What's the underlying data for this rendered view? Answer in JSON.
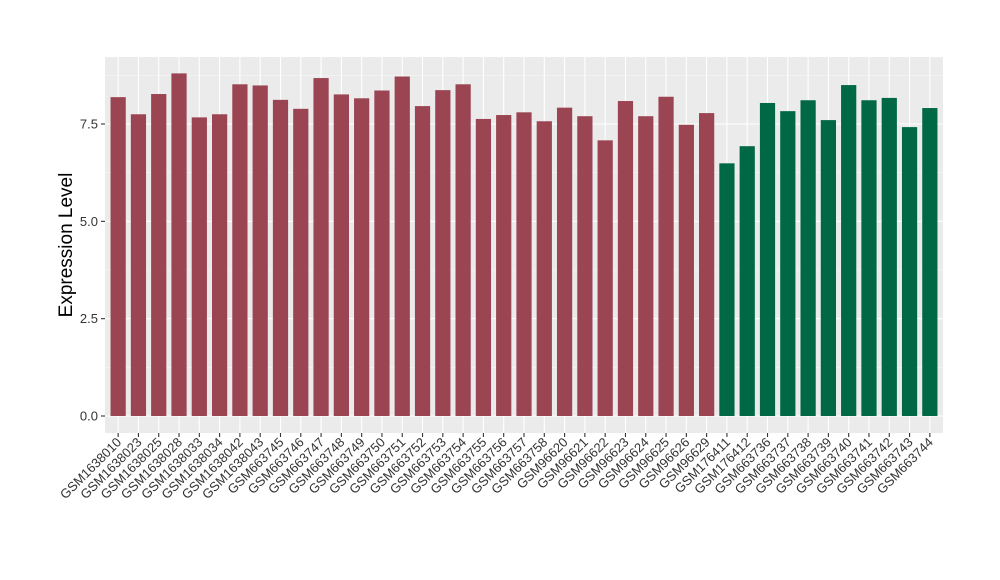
{
  "chart_data": {
    "type": "bar",
    "title": "",
    "xlabel": "",
    "ylabel": "Expression Level",
    "ylim": [
      0,
      9.2
    ],
    "yticks": [
      "0.0",
      "2.5",
      "5.0",
      "7.5"
    ],
    "ytick_values": [
      0,
      2.5,
      5.0,
      7.5
    ],
    "grid": true,
    "panel_background": "#ebebeb",
    "colors": {
      "group1": "#9b4452",
      "group2": "#006845"
    },
    "categories": [
      "GSM1638010",
      "GSM1638023",
      "GSM1638025",
      "GSM1638028",
      "GSM1638033",
      "GSM1638034",
      "GSM1638042",
      "GSM1638043",
      "GSM663745",
      "GSM663746",
      "GSM663747",
      "GSM663748",
      "GSM663749",
      "GSM663750",
      "GSM663751",
      "GSM663752",
      "GSM663753",
      "GSM663754",
      "GSM663755",
      "GSM663756",
      "GSM663757",
      "GSM663758",
      "GSM96620",
      "GSM96621",
      "GSM96622",
      "GSM96623",
      "GSM96624",
      "GSM96625",
      "GSM96626",
      "GSM96629",
      "GSM176411",
      "GSM176412",
      "GSM663736",
      "GSM663737",
      "GSM663738",
      "GSM663739",
      "GSM663740",
      "GSM663741",
      "GSM663742",
      "GSM663743",
      "GSM663744"
    ],
    "values": [
      8.19,
      7.75,
      8.27,
      8.8,
      7.67,
      7.75,
      8.52,
      8.49,
      8.12,
      7.89,
      8.68,
      8.26,
      8.16,
      8.36,
      8.72,
      7.96,
      8.37,
      8.52,
      7.63,
      7.73,
      7.8,
      7.57,
      7.92,
      7.7,
      7.08,
      8.09,
      7.7,
      8.2,
      7.48,
      7.78,
      6.49,
      6.93,
      8.04,
      7.83,
      8.11,
      7.6,
      8.5,
      8.11,
      8.17,
      7.42,
      7.91
    ],
    "groups": [
      "group1",
      "group1",
      "group1",
      "group1",
      "group1",
      "group1",
      "group1",
      "group1",
      "group1",
      "group1",
      "group1",
      "group1",
      "group1",
      "group1",
      "group1",
      "group1",
      "group1",
      "group1",
      "group1",
      "group1",
      "group1",
      "group1",
      "group1",
      "group1",
      "group1",
      "group1",
      "group1",
      "group1",
      "group1",
      "group1",
      "group2",
      "group2",
      "group2",
      "group2",
      "group2",
      "group2",
      "group2",
      "group2",
      "group2",
      "group2",
      "group2"
    ]
  }
}
